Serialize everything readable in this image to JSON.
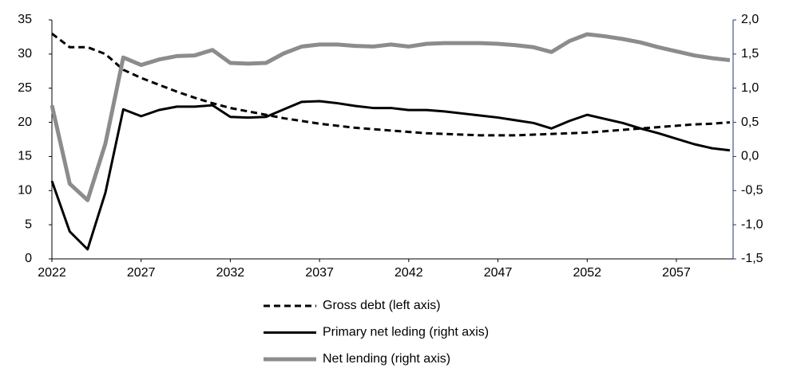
{
  "chart_data": {
    "type": "line",
    "x": [
      2022,
      2023,
      2024,
      2025,
      2026,
      2027,
      2028,
      2029,
      2030,
      2031,
      2032,
      2033,
      2034,
      2035,
      2036,
      2037,
      2038,
      2039,
      2040,
      2041,
      2042,
      2043,
      2044,
      2045,
      2046,
      2047,
      2048,
      2049,
      2050,
      2051,
      2052,
      2053,
      2054,
      2055,
      2056,
      2057,
      2058,
      2059,
      2060
    ],
    "xlim": [
      2022,
      2060
    ],
    "xticks": [
      2022,
      2027,
      2032,
      2037,
      2042,
      2047,
      2052,
      2057
    ],
    "ylim": [
      0,
      35
    ],
    "yticks": [
      0,
      5,
      10,
      15,
      20,
      25,
      30,
      35
    ],
    "y2lim": [
      -1.5,
      2
    ],
    "y2ticks": [
      {
        "value": -1.5,
        "label": "-1,5"
      },
      {
        "value": -1,
        "label": "-1,0"
      },
      {
        "value": -0.5,
        "label": "-0,5"
      },
      {
        "value": 0,
        "label": "0,0"
      },
      {
        "value": 0.5,
        "label": "0,5"
      },
      {
        "value": 1,
        "label": "1,0"
      },
      {
        "value": 1.5,
        "label": "1,5"
      },
      {
        "value": 2,
        "label": "2,0"
      }
    ],
    "legend": "bottom",
    "series": [
      {
        "name": "Gross debt (left axis)",
        "color": "#000000",
        "dashed": true,
        "axis": "y",
        "values": [
          33,
          31,
          31,
          30,
          27.7,
          26.5,
          25.5,
          24.5,
          23.6,
          22.8,
          22.1,
          21.6,
          21.1,
          20.6,
          20.2,
          19.8,
          19.5,
          19.2,
          19.0,
          18.8,
          18.6,
          18.4,
          18.3,
          18.2,
          18.1,
          18.1,
          18.1,
          18.2,
          18.3,
          18.4,
          18.5,
          18.7,
          18.9,
          19.1,
          19.3,
          19.5,
          19.7,
          19.8,
          20.0
        ]
      },
      {
        "name": "Primary net leding (right axis)",
        "color": "#000000",
        "dashed": false,
        "axis": "y2",
        "values": [
          -0.36,
          -1.1,
          -1.36,
          -0.53,
          0.69,
          0.59,
          0.68,
          0.73,
          0.73,
          0.75,
          0.58,
          0.57,
          0.58,
          0.69,
          0.8,
          0.81,
          0.78,
          0.74,
          0.71,
          0.71,
          0.68,
          0.68,
          0.66,
          0.63,
          0.6,
          0.57,
          0.53,
          0.49,
          0.41,
          0.52,
          0.61,
          0.55,
          0.49,
          0.41,
          0.34,
          0.26,
          0.18,
          0.12,
          0.09
        ]
      },
      {
        "name": "Net lending (right axis)",
        "color": "#8c8c8c",
        "dashed": false,
        "axis": "y2",
        "values": [
          0.75,
          -0.4,
          -0.64,
          0.19,
          1.45,
          1.34,
          1.42,
          1.47,
          1.48,
          1.56,
          1.37,
          1.36,
          1.37,
          1.51,
          1.61,
          1.64,
          1.64,
          1.62,
          1.61,
          1.64,
          1.61,
          1.65,
          1.66,
          1.66,
          1.66,
          1.65,
          1.63,
          1.6,
          1.53,
          1.69,
          1.79,
          1.76,
          1.72,
          1.67,
          1.6,
          1.54,
          1.48,
          1.44,
          1.41
        ]
      }
    ]
  }
}
